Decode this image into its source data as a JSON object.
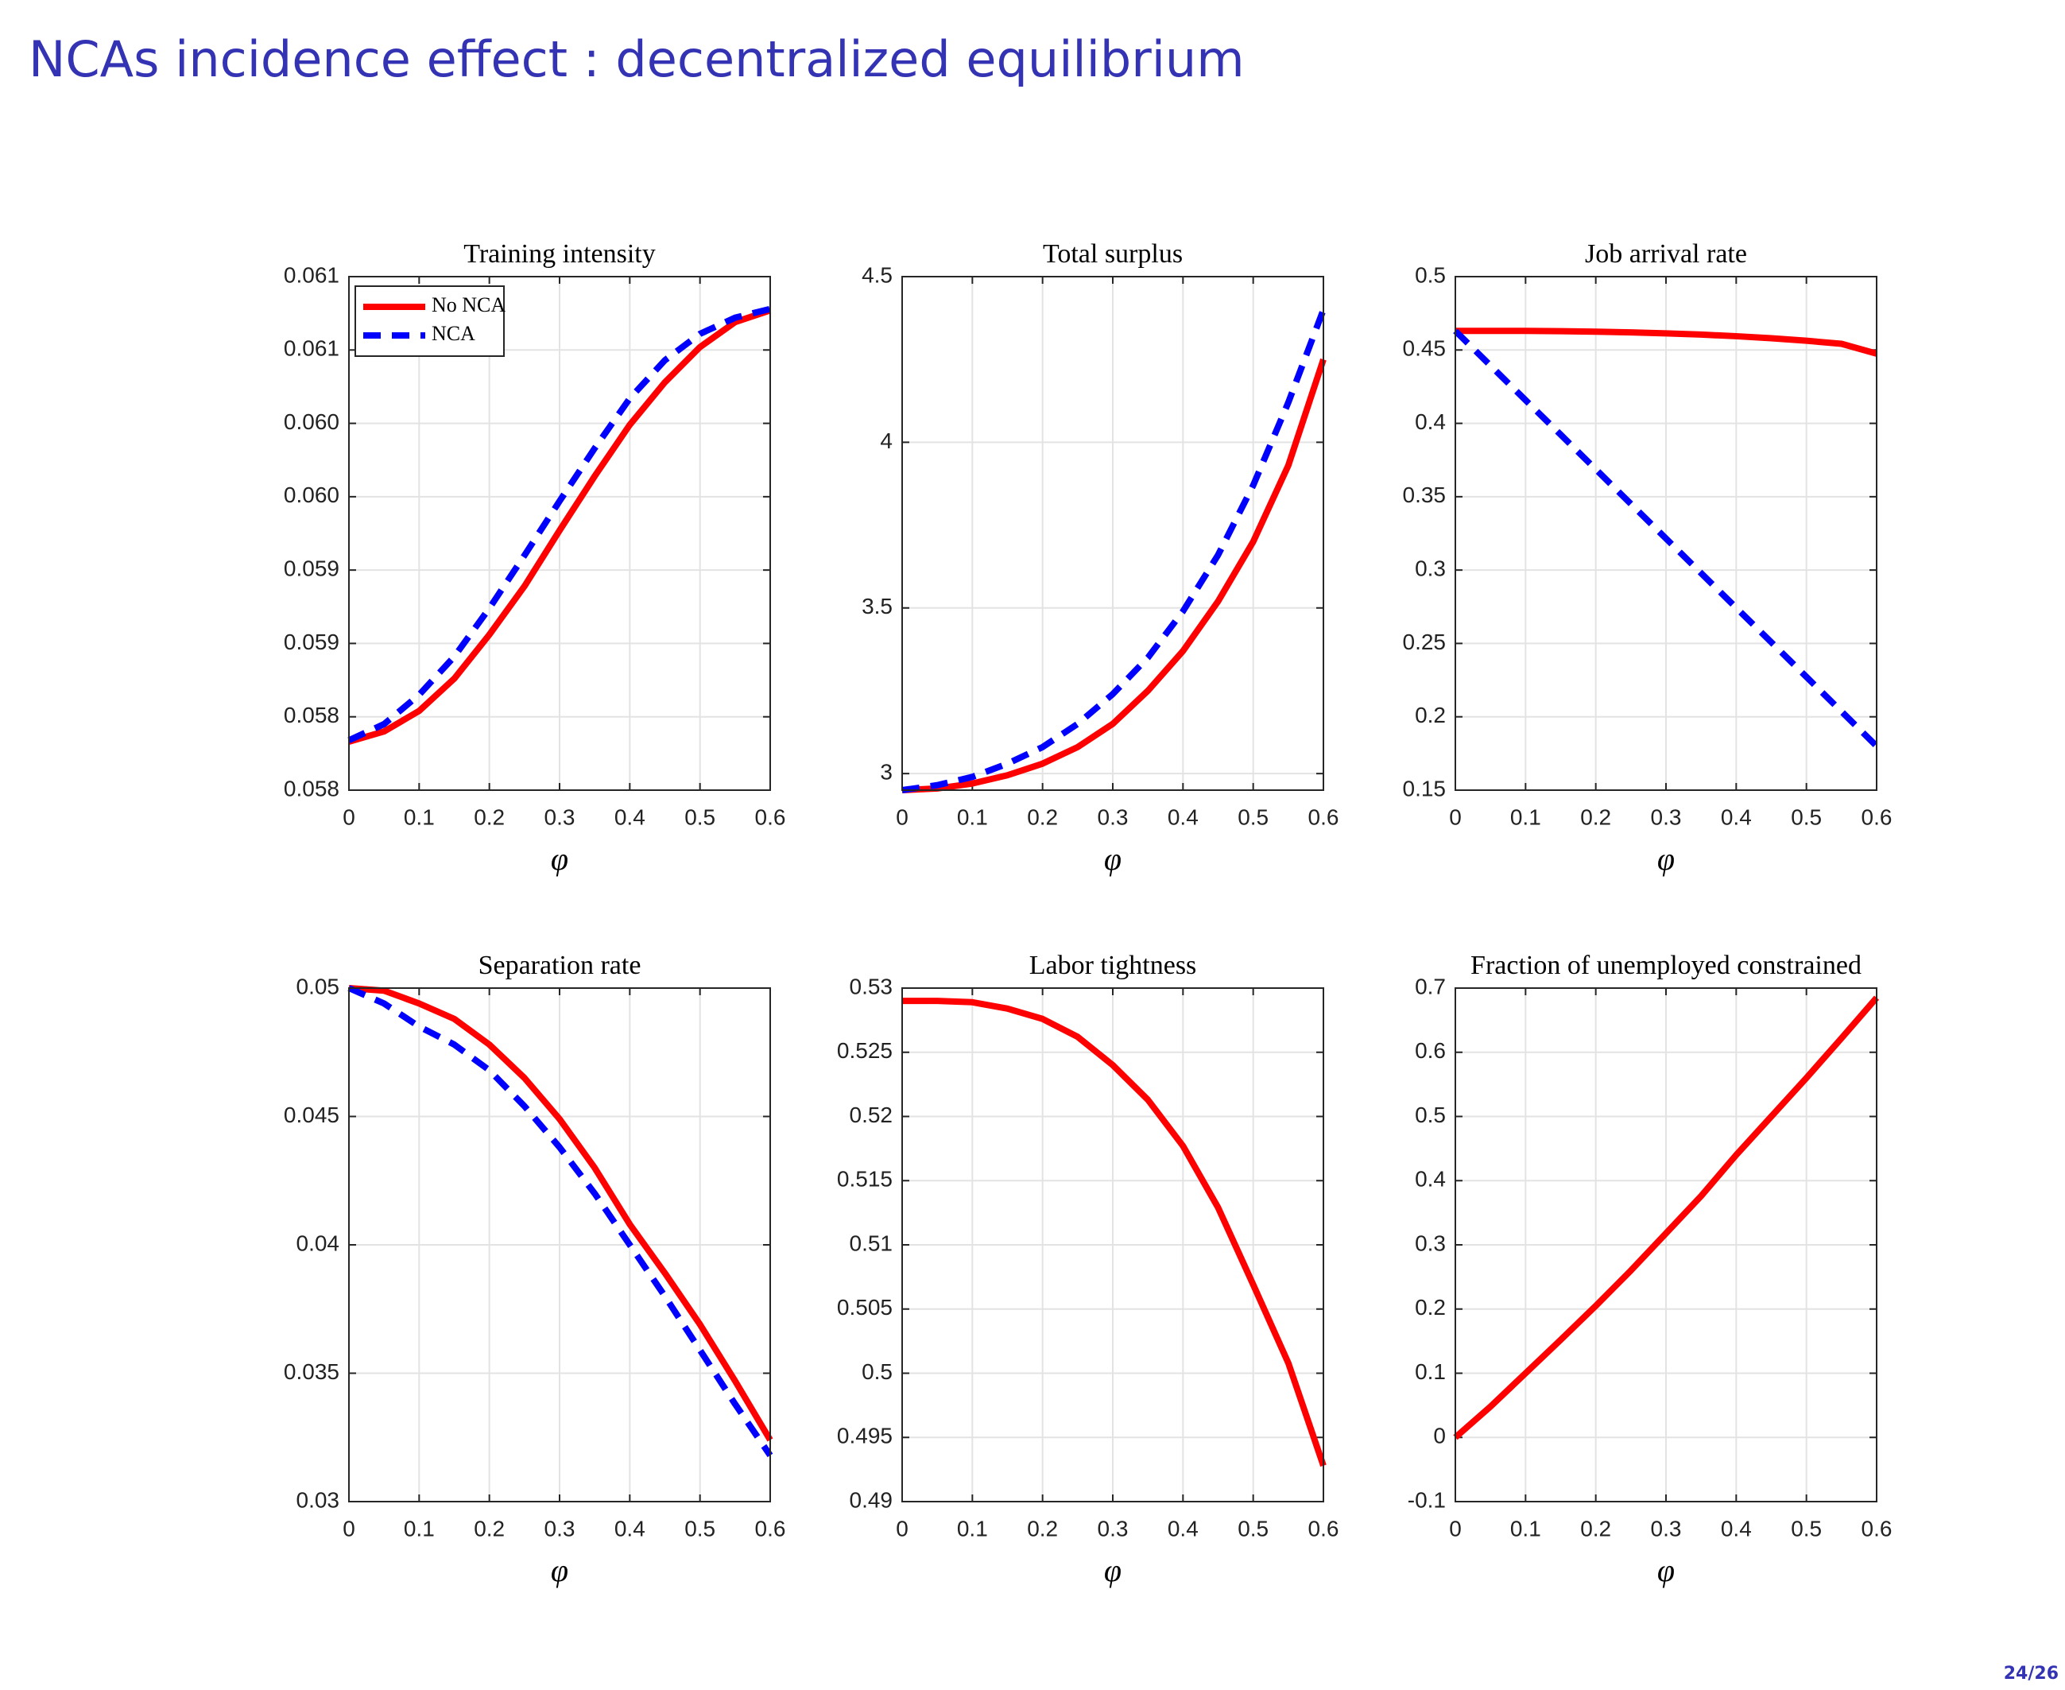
{
  "header": {
    "title": "NCAs incidence effect : decentralized equilibrium"
  },
  "footer": {
    "page": "24/26"
  },
  "chart_data": [
    {
      "type": "line",
      "title": "Training intensity",
      "xlabel": "φ",
      "x": [
        0,
        0.05,
        0.1,
        0.15,
        0.2,
        0.25,
        0.3,
        0.35,
        0.4,
        0.45,
        0.5,
        0.55,
        0.6
      ],
      "series": [
        {
          "name": "No NCA",
          "color": "#ff0000",
          "line_style": "solid",
          "values": [
            0.05783,
            0.0579,
            0.05804,
            0.05826,
            0.05856,
            0.05889,
            0.05927,
            0.05964,
            0.05999,
            0.06028,
            0.06052,
            0.06069,
            0.06077
          ]
        },
        {
          "name": "NCA",
          "color": "#0000ff",
          "line_style": "dashed",
          "values": [
            0.05784,
            0.05795,
            0.05815,
            0.05841,
            0.05874,
            0.0591,
            0.05947,
            0.05983,
            0.06017,
            0.06043,
            0.06061,
            0.06072,
            0.06078
          ]
        }
      ],
      "xlim": [
        0,
        0.6
      ],
      "xticks": [
        0,
        0.1,
        0.2,
        0.3,
        0.4,
        0.5,
        0.6
      ],
      "ylim": [
        0.0575,
        0.061
      ],
      "yticks": [
        {
          "value": 0.0575,
          "label": "0.058"
        },
        0.058,
        {
          "value": 0.0585,
          "label": "0.059"
        },
        0.059,
        {
          "value": 0.0595,
          "label": "0.060"
        },
        {
          "value": 0.06,
          "label": "0.060"
        },
        {
          "value": 0.0605,
          "label": "0.061"
        },
        0.061
      ],
      "grid": true,
      "legend": "upper left"
    },
    {
      "type": "line",
      "title": "Total surplus",
      "xlabel": "φ",
      "x": [
        0,
        0.05,
        0.1,
        0.15,
        0.2,
        0.25,
        0.3,
        0.35,
        0.4,
        0.45,
        0.5,
        0.55,
        0.6
      ],
      "series": [
        {
          "color": "#ff0000",
          "line_style": "solid",
          "values": [
            2.95,
            2.955,
            2.97,
            2.995,
            3.03,
            3.08,
            3.15,
            3.25,
            3.37,
            3.52,
            3.7,
            3.93,
            4.25
          ]
        },
        {
          "color": "#0000ff",
          "line_style": "dashed",
          "values": [
            2.95,
            2.965,
            2.99,
            3.03,
            3.08,
            3.15,
            3.24,
            3.35,
            3.49,
            3.66,
            3.87,
            4.12,
            4.4
          ]
        }
      ],
      "xlim": [
        0,
        0.6
      ],
      "xticks": [
        0,
        0.1,
        0.2,
        0.3,
        0.4,
        0.5,
        0.6
      ],
      "ylim": [
        2.95,
        4.5
      ],
      "yticks": [
        3,
        3.5,
        4,
        4.5
      ],
      "grid": true
    },
    {
      "type": "line",
      "title": "Job arrival rate",
      "xlabel": "φ",
      "x": [
        0,
        0.05,
        0.1,
        0.15,
        0.2,
        0.25,
        0.3,
        0.35,
        0.4,
        0.45,
        0.5,
        0.55,
        0.6
      ],
      "series": [
        {
          "color": "#ff0000",
          "line_style": "solid",
          "values": [
            0.463,
            0.463,
            0.463,
            0.4628,
            0.4625,
            0.462,
            0.4613,
            0.4605,
            0.4594,
            0.458,
            0.4563,
            0.4542,
            0.4475
          ]
        },
        {
          "color": "#0000ff",
          "line_style": "dashed",
          "values": [
            0.463,
            0.4394,
            0.4158,
            0.3923,
            0.3687,
            0.3451,
            0.3215,
            0.2979,
            0.2743,
            0.2508,
            0.2272,
            0.2036,
            0.18
          ]
        }
      ],
      "xlim": [
        0,
        0.6
      ],
      "xticks": [
        0,
        0.1,
        0.2,
        0.3,
        0.4,
        0.5,
        0.6
      ],
      "ylim": [
        0.15,
        0.5
      ],
      "yticks": [
        0.15,
        0.2,
        0.25,
        0.3,
        0.35,
        0.4,
        0.45,
        0.5
      ],
      "grid": true
    },
    {
      "type": "line",
      "title": "Separation rate",
      "xlabel": "φ",
      "x": [
        0,
        0.05,
        0.1,
        0.15,
        0.2,
        0.25,
        0.3,
        0.35,
        0.4,
        0.45,
        0.5,
        0.55,
        0.6
      ],
      "series": [
        {
          "color": "#ff0000",
          "line_style": "solid",
          "values": [
            0.05,
            0.0499,
            0.0494,
            0.0488,
            0.0478,
            0.0465,
            0.0449,
            0.043,
            0.0408,
            0.0389,
            0.0369,
            0.0347,
            0.0324
          ]
        },
        {
          "color": "#0000ff",
          "line_style": "dashed",
          "values": [
            0.05,
            0.0494,
            0.0485,
            0.0478,
            0.0468,
            0.0454,
            0.0438,
            0.042,
            0.04,
            0.038,
            0.0359,
            0.0338,
            0.0318
          ]
        }
      ],
      "xlim": [
        0,
        0.6
      ],
      "xticks": [
        0,
        0.1,
        0.2,
        0.3,
        0.4,
        0.5,
        0.6
      ],
      "ylim": [
        0.03,
        0.05
      ],
      "yticks": [
        0.03,
        0.035,
        0.04,
        0.045,
        0.05
      ],
      "grid": true
    },
    {
      "type": "line",
      "title": "Labor tightness",
      "xlabel": "φ",
      "x": [
        0,
        0.05,
        0.1,
        0.15,
        0.2,
        0.25,
        0.3,
        0.35,
        0.4,
        0.45,
        0.5,
        0.55,
        0.6
      ],
      "series": [
        {
          "color": "#ff0000",
          "line_style": "solid",
          "values": [
            0.529,
            0.529,
            0.5289,
            0.5284,
            0.5276,
            0.5262,
            0.524,
            0.5213,
            0.5177,
            0.5129,
            0.5069,
            0.5008,
            0.4928
          ]
        }
      ],
      "xlim": [
        0,
        0.6
      ],
      "xticks": [
        0,
        0.1,
        0.2,
        0.3,
        0.4,
        0.5,
        0.6
      ],
      "ylim": [
        0.49,
        0.53
      ],
      "yticks": [
        0.49,
        0.495,
        0.5,
        0.505,
        0.51,
        0.515,
        0.52,
        0.525,
        0.53
      ],
      "grid": true
    },
    {
      "type": "line",
      "title": "Fraction of unemployed constrained",
      "xlabel": "φ",
      "x": [
        0,
        0.05,
        0.1,
        0.15,
        0.2,
        0.25,
        0.3,
        0.35,
        0.4,
        0.45,
        0.5,
        0.55,
        0.6
      ],
      "series": [
        {
          "color": "#ff0000",
          "line_style": "solid",
          "values": [
            0,
            0.048,
            0.1,
            0.152,
            0.205,
            0.26,
            0.318,
            0.376,
            0.44,
            0.5,
            0.56,
            0.622,
            0.685
          ]
        }
      ],
      "xlim": [
        0,
        0.6
      ],
      "xticks": [
        0,
        0.1,
        0.2,
        0.3,
        0.4,
        0.5,
        0.6
      ],
      "ylim": [
        -0.1,
        0.7
      ],
      "yticks": [
        -0.1,
        0,
        0.1,
        0.2,
        0.3,
        0.4,
        0.5,
        0.6,
        0.7
      ],
      "grid": true
    }
  ]
}
